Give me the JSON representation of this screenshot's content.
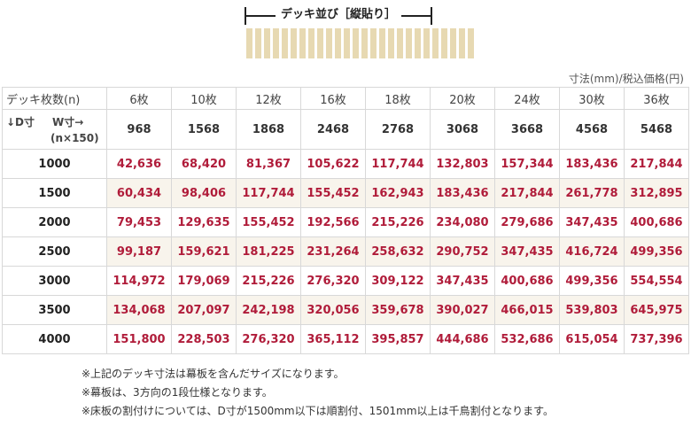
{
  "diagram": {
    "title": "デッキ並び［縦貼り］",
    "board_count": 26
  },
  "unit_note": "寸法(mm)/税込価格(円)",
  "header": {
    "count_label": "デッキ枚数(n)",
    "d_label": "↓D寸",
    "w_label": "W寸→",
    "formula": "(n×150)"
  },
  "columns": [
    {
      "count": "6枚",
      "width": "968"
    },
    {
      "count": "10枚",
      "width": "1568"
    },
    {
      "count": "12枚",
      "width": "1868"
    },
    {
      "count": "16枚",
      "width": "2468"
    },
    {
      "count": "18枚",
      "width": "2768"
    },
    {
      "count": "20枚",
      "width": "3068"
    },
    {
      "count": "24枚",
      "width": "3668"
    },
    {
      "count": "30枚",
      "width": "4568"
    },
    {
      "count": "36枚",
      "width": "5468"
    }
  ],
  "rows": [
    {
      "d": "1000",
      "prices": [
        "42,636",
        "68,420",
        "81,367",
        "105,622",
        "117,744",
        "132,803",
        "157,344",
        "183,436",
        "217,844"
      ]
    },
    {
      "d": "1500",
      "prices": [
        "60,434",
        "98,406",
        "117,744",
        "155,452",
        "162,943",
        "183,436",
        "217,844",
        "261,778",
        "312,895"
      ]
    },
    {
      "d": "2000",
      "prices": [
        "79,453",
        "129,635",
        "155,452",
        "192,566",
        "215,226",
        "234,080",
        "279,686",
        "347,435",
        "400,686"
      ]
    },
    {
      "d": "2500",
      "prices": [
        "99,187",
        "159,621",
        "181,225",
        "231,264",
        "258,632",
        "290,752",
        "347,435",
        "416,724",
        "499,356"
      ]
    },
    {
      "d": "3000",
      "prices": [
        "114,972",
        "179,069",
        "215,226",
        "276,320",
        "309,122",
        "347,435",
        "400,686",
        "499,356",
        "554,554"
      ]
    },
    {
      "d": "3500",
      "prices": [
        "134,068",
        "207,097",
        "242,198",
        "320,056",
        "359,678",
        "390,027",
        "466,015",
        "539,803",
        "645,975"
      ]
    },
    {
      "d": "4000",
      "prices": [
        "151,800",
        "228,503",
        "276,320",
        "365,112",
        "395,857",
        "444,686",
        "532,686",
        "615,054",
        "737,396"
      ]
    }
  ],
  "notes": [
    "※上記のデッキ寸法は幕板を含んだサイズになります。",
    "※幕板は、3方向の1段仕様となります。",
    "※床板の割付けについては、D寸が1500mm以下は順割付、1501mm以上は千鳥割付となります。"
  ],
  "colors": {
    "price": "#b01c3a",
    "board": "#e7d9b2",
    "shade": "#f8f4ec"
  }
}
